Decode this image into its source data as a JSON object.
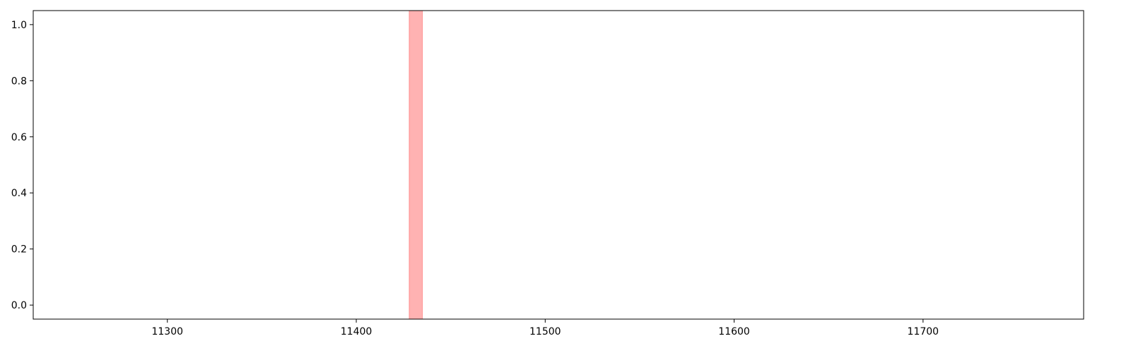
{
  "chart_data": {
    "type": "area",
    "title": "",
    "xlabel": "",
    "ylabel": "",
    "xlim": [
      11229,
      11785.0
    ],
    "ylim": [
      -0.05,
      1.05
    ],
    "x_ticks": [
      11300,
      11400,
      11500,
      11600,
      11700
    ],
    "y_ticks": [
      0.0,
      0.2,
      0.4,
      0.6,
      0.8,
      1.0
    ],
    "x_tick_labels": [
      "11300",
      "11400",
      "11500",
      "11600",
      "11700"
    ],
    "y_tick_labels": [
      "0.0",
      "0.2",
      "0.4",
      "0.6",
      "0.8",
      "1.0"
    ],
    "grid": false,
    "legend": "none",
    "highlight_spans": [
      {
        "x_start": 11428,
        "x_end": 11435,
        "color": "#ff0000",
        "alpha": 0.3
      }
    ],
    "colors": {
      "axes": "#000000",
      "background": "#ffffff"
    }
  }
}
